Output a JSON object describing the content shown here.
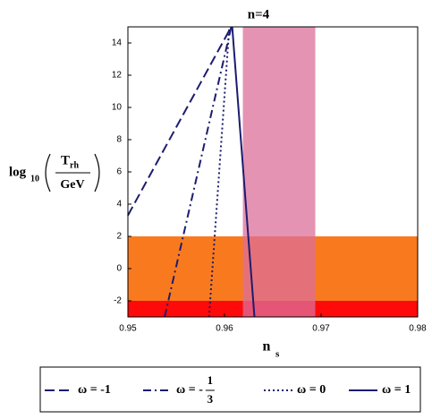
{
  "chart_data": {
    "type": "line",
    "title": "n=4",
    "x_label": {
      "main": "n",
      "sub": "s"
    },
    "y_label": {
      "func": "log",
      "sub": "10",
      "num": "T",
      "num_sub": "rh",
      "den": "GeV"
    },
    "xlim": [
      0.95,
      0.98
    ],
    "xticks": [
      0.95,
      0.96,
      0.97,
      0.98
    ],
    "ylim": [
      -3,
      15
    ],
    "yticks": [
      -2,
      0,
      2,
      4,
      6,
      8,
      10,
      12,
      14
    ],
    "bands": [
      {
        "axis": "y",
        "range": [
          -3,
          2
        ],
        "color": "#f97a1e",
        "opacity": 1
      },
      {
        "axis": "y",
        "range": [
          -3,
          -2
        ],
        "color": "#ff0a0a",
        "opacity": 1
      },
      {
        "axis": "x",
        "range": [
          0.9619,
          0.9694
        ],
        "color": "#dc6f9a",
        "opacity": 0.75
      }
    ],
    "series": [
      {
        "name": "ω = -1",
        "color": "#1c1c70",
        "dash": "11,5",
        "x": [
          0.95,
          0.9607
        ],
        "values": [
          3.3,
          15
        ]
      },
      {
        "name": "ω = -",
        "name_fraction": [
          "1",
          "3"
        ],
        "color": "#1c1c70",
        "dash": "9,4,2,4",
        "x": [
          0.9538,
          0.9607
        ],
        "values": [
          -3,
          15
        ]
      },
      {
        "name": "ω = 0",
        "color": "#1c1c70",
        "dash": "2,3",
        "x": [
          0.9584,
          0.9605
        ],
        "values": [
          -3,
          15
        ]
      },
      {
        "name": "ω = 1",
        "color": "#1c1c70",
        "dash": "",
        "x": [
          0.9608,
          0.9631
        ],
        "values": [
          15,
          -3
        ]
      }
    ]
  }
}
